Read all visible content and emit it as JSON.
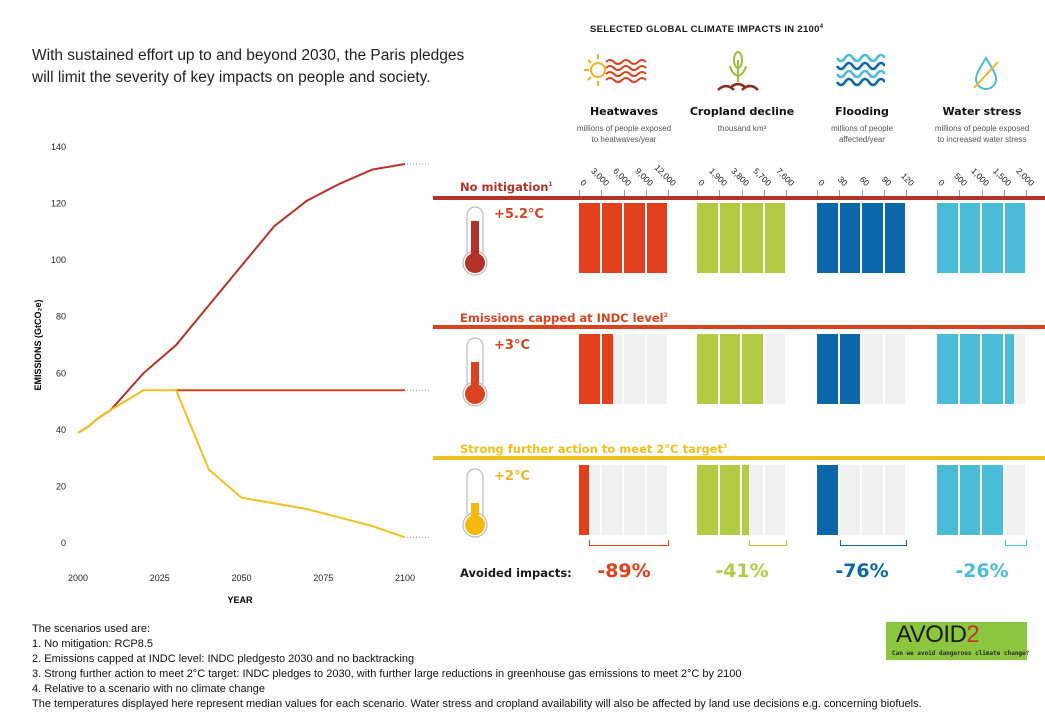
{
  "headline": [
    "With sustained effort up to and beyond 2030, the Paris pledges",
    "will limit the severity of key impacts on people and society."
  ],
  "impacts_title": "SELECTED GLOBAL CLIMATE IMPACTS IN 2100",
  "impacts_title_sup": "4",
  "colors": {
    "heat": "#e2401c",
    "crop": "#b2cb43",
    "flood": "#0b67a9",
    "water": "#4bbcd6",
    "nomit": "#b53228",
    "indc": "#d9431f",
    "strong": "#f1c01c",
    "track": "#f1f1f1"
  },
  "columns": [
    {
      "key": "heat",
      "title": "Heatwaves",
      "subtitle": [
        "millions of people exposed",
        "to heatwaves/year"
      ],
      "icon": "sun-heatwave-icon",
      "ticks": [
        "0",
        "3,000",
        "6,000",
        "9,000",
        "12,000"
      ],
      "max": 12000,
      "values": [
        12000,
        4500,
        1300
      ],
      "avoided": "-89%"
    },
    {
      "key": "crop",
      "title": "Cropland decline",
      "subtitle": [
        "thousand km²"
      ],
      "icon": "wheat-plant-icon",
      "ticks": [
        "0",
        "1,900",
        "3,800",
        "5,700",
        "7,600"
      ],
      "max": 7600,
      "values": [
        7600,
        5700,
        4400
      ],
      "avoided": "-41%"
    },
    {
      "key": "flood",
      "title": "Flooding",
      "subtitle": [
        "millions of people",
        "affected/year"
      ],
      "icon": "waves-icon",
      "ticks": [
        "0",
        "30",
        "60",
        "90",
        "120"
      ],
      "max": 120,
      "values": [
        120,
        60,
        30
      ],
      "avoided": "-76%"
    },
    {
      "key": "water",
      "title": "Water stress",
      "subtitle": [
        "millions of people exposed",
        "to increased water stress"
      ],
      "icon": "water-drop-crossed-icon",
      "ticks": [
        "0",
        "500",
        "1,000",
        "1,500",
        "2,000"
      ],
      "max": 2000,
      "values": [
        2000,
        1700,
        1500
      ],
      "avoided": "-26%"
    }
  ],
  "scenarios": [
    {
      "key": "nomit",
      "label": "No mitigation",
      "sup": "1",
      "temp": "+5.2°C",
      "level": 0.85
    },
    {
      "key": "indc",
      "label": "Emissions capped at INDC level",
      "sup": "2",
      "temp": "+3°C",
      "level": 0.6
    },
    {
      "key": "strong",
      "label": "Strong further action to meet 2°C target",
      "sup": "3",
      "temp": "+2°C",
      "level": 0.35
    }
  ],
  "avoided_label": "Avoided impacts:",
  "chart_data": {
    "type": "line",
    "title": "",
    "xlabel": "YEAR",
    "ylabel": "EMISSIONS (GtCO₂e)",
    "xlim": [
      2000,
      2100
    ],
    "ylim": [
      0,
      140
    ],
    "xticks": [
      "2000",
      "2025",
      "2050",
      "2075",
      "2100"
    ],
    "yticks": [
      "0",
      "20",
      "40",
      "60",
      "80",
      "100",
      "120",
      "140"
    ],
    "grid": false,
    "series": [
      {
        "name": "No mitigation",
        "color": "#b53228",
        "x": [
          2000,
          2003,
          2006,
          2010,
          2020,
          2030,
          2040,
          2050,
          2060,
          2070,
          2080,
          2090,
          2100
        ],
        "y": [
          39,
          41,
          44,
          47,
          60,
          70,
          84,
          98,
          112,
          121,
          127,
          132,
          134
        ]
      },
      {
        "name": "Emissions capped at INDC level",
        "color": "#d9431f",
        "x": [
          2030,
          2040,
          2050,
          2060,
          2070,
          2080,
          2090,
          2100
        ],
        "y": [
          54,
          54,
          54,
          54,
          54,
          54,
          54,
          54
        ]
      },
      {
        "name": "Strong further action to meet 2°C target",
        "color": "#f1c01c",
        "x": [
          2000,
          2003,
          2006,
          2010,
          2020,
          2030,
          2040,
          2050,
          2060,
          2070,
          2080,
          2090,
          2100
        ],
        "y": [
          39,
          41,
          44,
          47,
          54,
          54,
          26,
          16,
          14,
          12,
          9,
          6,
          2
        ]
      }
    ]
  },
  "footnotes": [
    "The scenarios used are:",
    "1. No mitigation: RCP8.5",
    "2. Emissions capped at INDC level: INDC pledgesto 2030 and no backtracking",
    "3. Strong further action to meet 2°C target: INDC pledges to 2030, with further large reductions in greenhouse gas emissions to meet 2°C by 2100",
    "4. Relative to a scenario with no climate change",
    "The temperatures displayed here represent median values for each scenario. Water stress and cropland availability will also be affected by land use decisions e.g. concerning biofuels."
  ],
  "logo": {
    "main": "AVOID",
    "num": "2",
    "tagline": "Can we avoid dangerous climate change?"
  }
}
